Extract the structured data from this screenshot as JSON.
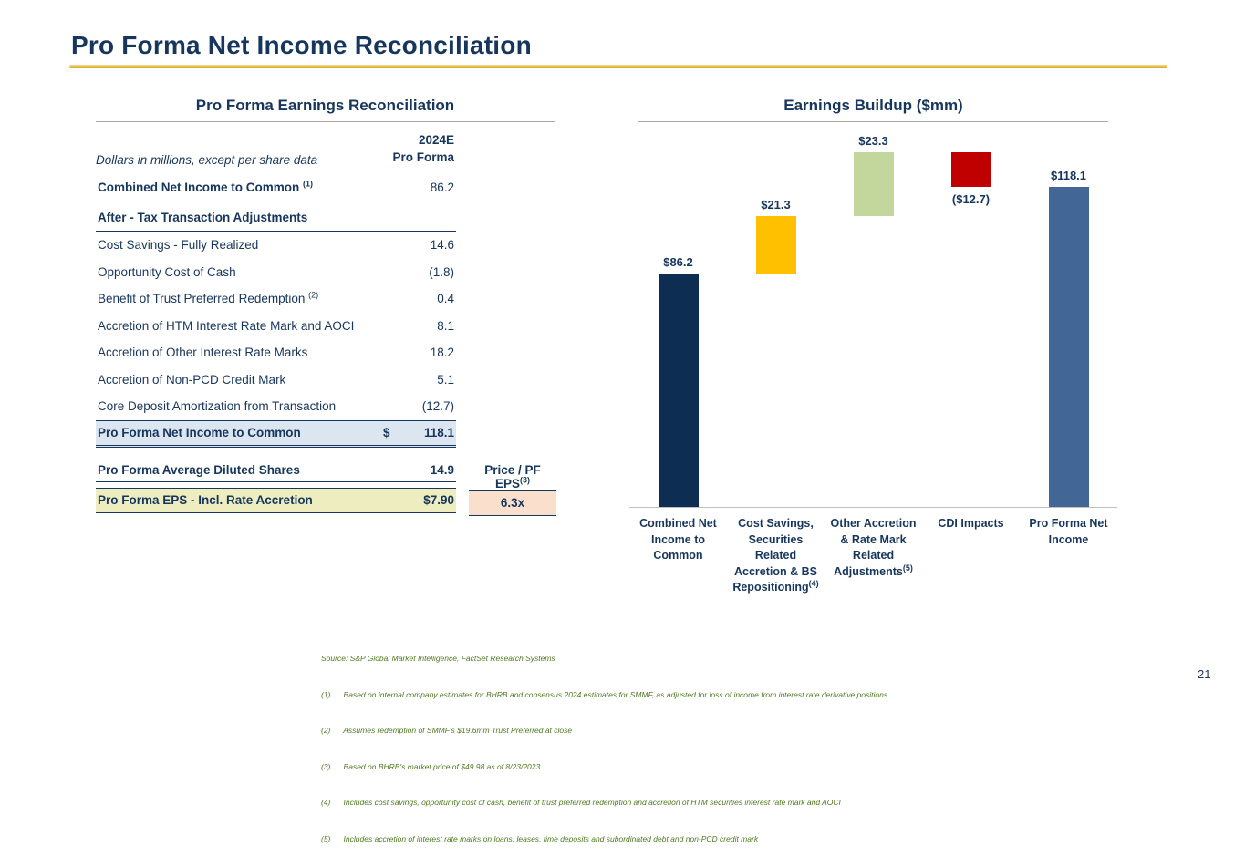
{
  "slide": {
    "title": "Pro Forma Net Income Reconciliation",
    "page_number": "21"
  },
  "table": {
    "title": "Pro Forma Earnings Reconciliation",
    "units_note": "Dollars in millions, except per share data",
    "period_label": "2024E",
    "period_sublabel": "Pro Forma",
    "combined_row": {
      "label": "Combined Net Income to Common",
      "sup": "(1)",
      "value": "86.2"
    },
    "section_header": "After - Tax Transaction Adjustments",
    "adjustment_rows": [
      {
        "label": "Cost Savings - Fully Realized",
        "sup": "",
        "value": "14.6"
      },
      {
        "label": "Opportunity Cost of Cash",
        "sup": "",
        "value": "(1.8)"
      },
      {
        "label": "Benefit of Trust Preferred Redemption",
        "sup": "(2)",
        "value": "0.4"
      },
      {
        "label": "Accretion of HTM Interest Rate Mark and AOCI",
        "sup": "",
        "value": "8.1"
      },
      {
        "label": "Accretion of Other Interest Rate Marks",
        "sup": "",
        "value": "18.2"
      },
      {
        "label": "Accretion of Non-PCD Credit Mark",
        "sup": "",
        "value": "5.1"
      },
      {
        "label": "Core Deposit Amortization from Transaction",
        "sup": "",
        "value": "(12.7)"
      }
    ],
    "total_row": {
      "label": "Pro Forma Net Income to Common",
      "currency": "$",
      "value": "118.1"
    },
    "shares_row": {
      "label": "Pro Forma Average Diluted Shares",
      "value": "14.9"
    },
    "eps_row": {
      "label": "Pro Forma EPS - Incl. Rate Accretion",
      "value": "$7.90"
    },
    "price_pf_eps": {
      "label": "Price / PF EPS",
      "sup": "(3)",
      "value": "6.3x"
    }
  },
  "chart_data": {
    "type": "waterfall",
    "title": "Earnings Buildup ($mm)",
    "categories": [
      "Combined Net Income to Common",
      "Cost Savings, Securities Related Accretion & BS Repositioning",
      "Other Accretion & Rate Mark Related Adjustments",
      "CDI Impacts",
      "Pro Forma Net Income"
    ],
    "category_sups": [
      "",
      "(4)",
      "(5)",
      "",
      ""
    ],
    "values": [
      86.2,
      21.3,
      23.3,
      -12.7,
      118.1
    ],
    "labels": [
      "$86.2",
      "$21.3",
      "$23.3",
      "($12.7)",
      "$118.1"
    ],
    "bar_types": [
      "absolute",
      "delta",
      "delta",
      "delta",
      "absolute"
    ],
    "colors": [
      "#0E2D52",
      "#FFC000",
      "#C3D69B",
      "#C00000",
      "#426695"
    ],
    "ylim": [
      0,
      140
    ],
    "grid": false,
    "legend": "none"
  },
  "footnotes": [
    "Source: S&P Global Market Intelligence, FactSet Research Systems",
    "(1)      Based on internal company estimates for BHRB and consensus 2024 estimates for SMMF, as adjusted for loss of income from interest rate derivative positions",
    "(2)      Assumes redemption of SMMF's $19.6mm Trust Preferred at close",
    "(3)      Based on BHRB's market price of $49.98 as of 8/23/2023",
    "(4)      Includes cost savings, opportunity cost of cash, benefit of trust preferred redemption and accretion of HTM securities interest rate mark and AOCI",
    "(5)      Includes accretion of interest rate marks on loans, leases, time deposits and subordinated debt and non-PCD credit mark"
  ]
}
